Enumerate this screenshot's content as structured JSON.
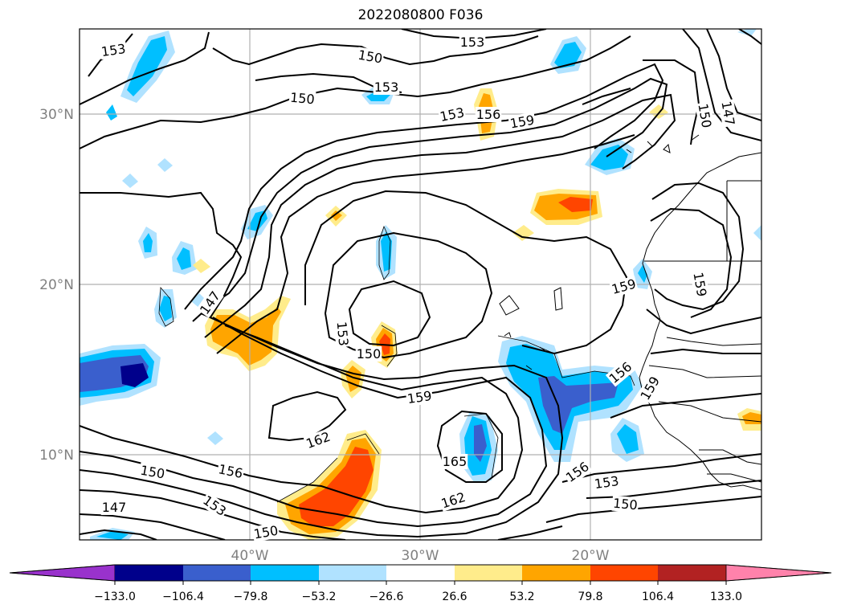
{
  "title": "2022080800 F036",
  "colors": {
    "land_outline": "#000000",
    "grid": "#b0b0b0",
    "contour": "#000000"
  },
  "axes": {
    "lat_labels": [
      "30°N",
      "20°N",
      "10°N"
    ],
    "lon_labels": [
      "40°W",
      "30°W",
      "20°W"
    ]
  },
  "contour_labels": [
    "153",
    "150",
    "153",
    "153",
    "150",
    "153",
    "156",
    "159",
    "150",
    "147",
    "147",
    "159",
    "159",
    "153",
    "150",
    "159",
    "156",
    "159",
    "162",
    "165",
    "150",
    "156",
    "153",
    "147",
    "150",
    "162",
    "156",
    "153",
    "150"
  ],
  "colorbar": {
    "colors": [
      "#9932cc",
      "#00008b",
      "#3a5fcd",
      "#00bfff",
      "#b0e2ff",
      "#ffffff",
      "#ffec8b",
      "#ffa500",
      "#ff4500",
      "#b22222",
      "#ff82ab"
    ],
    "tick_labels": [
      "−133.0",
      "−106.4",
      "−79.8",
      "−53.2",
      "−26.6",
      "26.6",
      "53.2",
      "79.8",
      "106.4",
      "133.0"
    ]
  }
}
